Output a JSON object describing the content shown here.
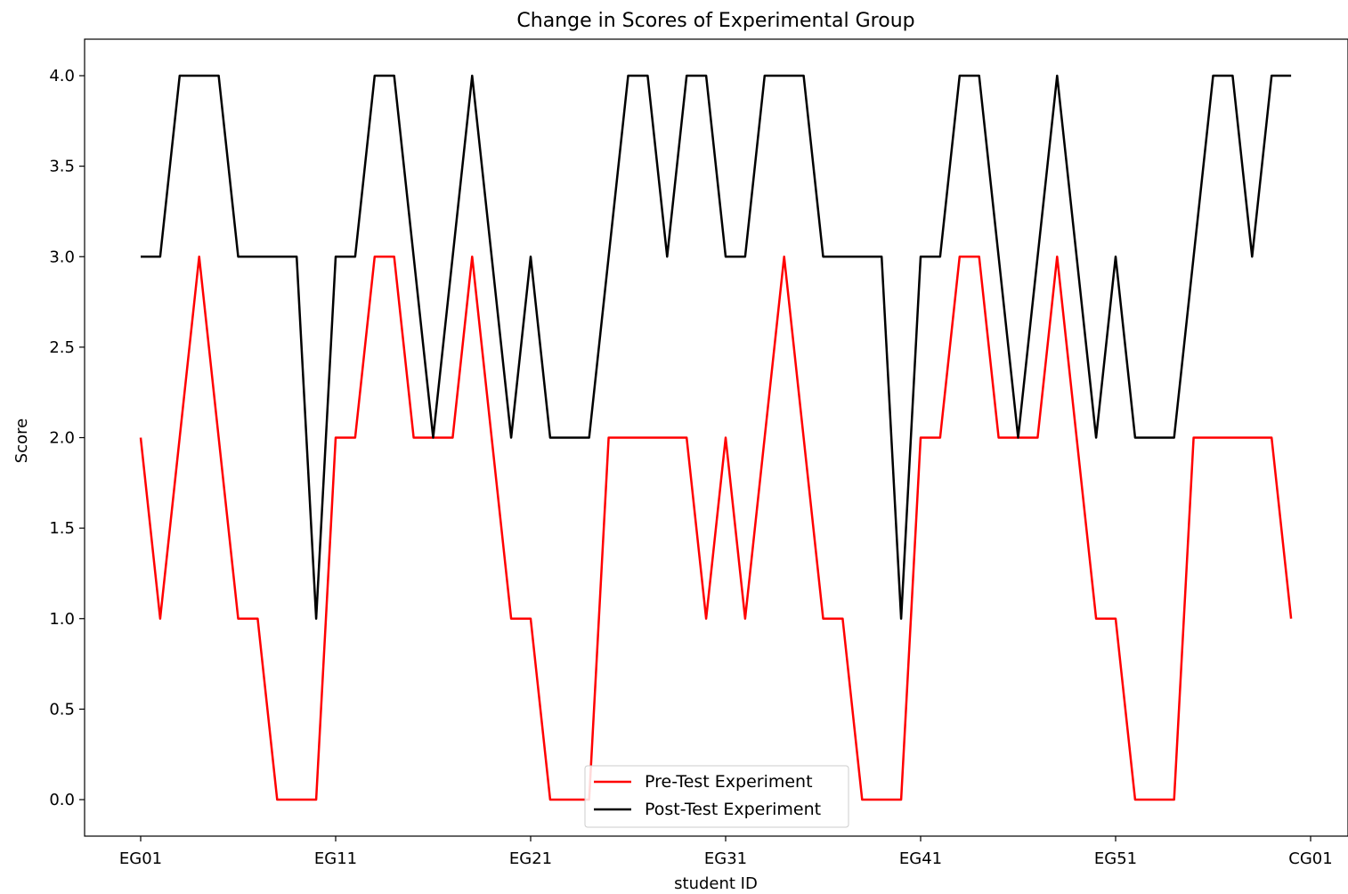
{
  "chart_data": {
    "type": "line",
    "title": "Change in Scores of Experimental Group",
    "xlabel": "student ID",
    "ylabel": "Score",
    "ylim": [
      -0.2,
      4.2
    ],
    "yticks": [
      "0.0",
      "0.5",
      "1.0",
      "1.5",
      "2.0",
      "2.5",
      "3.0",
      "3.5",
      "4.0"
    ],
    "ytick_values": [
      0,
      0.5,
      1,
      1.5,
      2,
      2.5,
      3,
      3.5,
      4
    ],
    "xticks": [
      "EG01",
      "EG11",
      "EG21",
      "EG31",
      "EG41",
      "EG51",
      "CG01"
    ],
    "xtick_index": [
      0,
      10,
      20,
      30,
      40,
      50,
      60
    ],
    "x_count": 60,
    "legend_position": "lower center",
    "grid": false,
    "series": [
      {
        "name": "Pre-Test Experiment",
        "color": "#ff0000",
        "values": [
          2,
          1,
          2,
          3,
          2,
          1,
          1,
          0,
          0,
          0,
          2,
          2,
          3,
          3,
          2,
          2,
          2,
          3,
          2,
          1,
          1,
          0,
          0,
          0,
          2,
          2,
          2,
          2,
          2,
          1,
          2,
          1,
          2,
          3,
          2,
          1,
          1,
          0,
          0,
          0,
          2,
          2,
          3,
          3,
          2,
          2,
          2,
          3,
          2,
          1,
          1,
          0,
          0,
          0,
          2,
          2,
          2,
          2,
          2,
          1
        ]
      },
      {
        "name": "Post-Test Experiment",
        "color": "#000000",
        "values": [
          3,
          3,
          4,
          4,
          4,
          3,
          3,
          3,
          3,
          1,
          3,
          3,
          4,
          4,
          3,
          2,
          3,
          4,
          3,
          2,
          3,
          2,
          2,
          2,
          3,
          4,
          4,
          3,
          4,
          4,
          3,
          3,
          4,
          4,
          4,
          3,
          3,
          3,
          3,
          1,
          3,
          3,
          4,
          4,
          3,
          2,
          3,
          4,
          3,
          2,
          3,
          2,
          2,
          2,
          3,
          4,
          4,
          3,
          4,
          4
        ]
      }
    ]
  }
}
